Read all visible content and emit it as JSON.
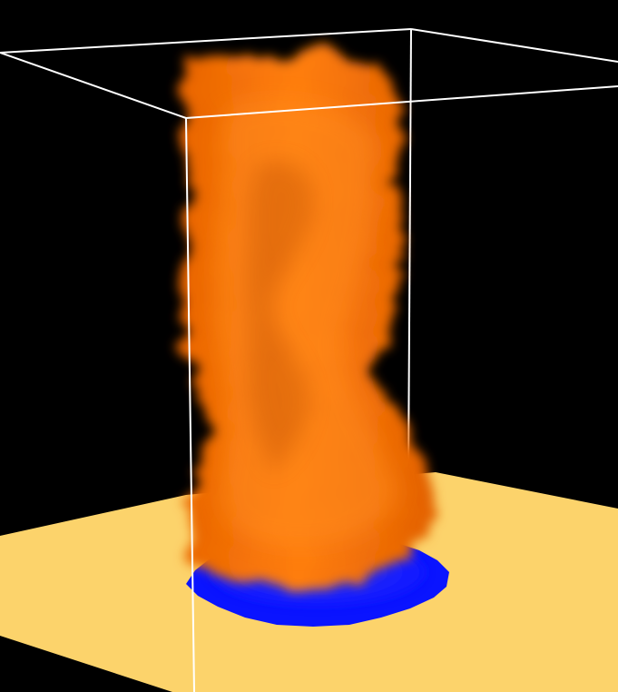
{
  "scene": {
    "background_color": "#000000",
    "floor_color": "#FCD36B",
    "inflow_patch_color": "#0A14FF",
    "plume_color": "#FF7A0A",
    "frame_color": "#FFFFFF"
  }
}
